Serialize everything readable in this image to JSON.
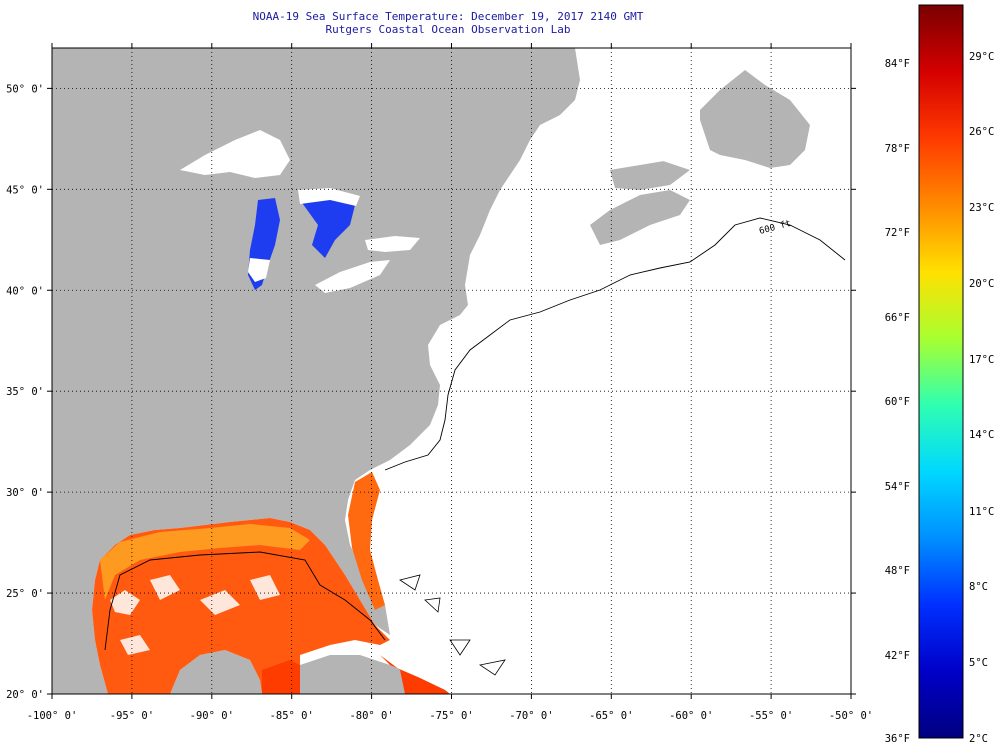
{
  "title": {
    "line1": "NOAA-19 Sea Surface Temperature:  December 19, 2017 2140 GMT",
    "line2": "Rutgers Coastal Ocean Observation Lab"
  },
  "map": {
    "lon_range": [
      -100,
      -50
    ],
    "lat_range": [
      20,
      52
    ],
    "lon_ticks": [
      "-100° 0'",
      "-95° 0'",
      "-90° 0'",
      "-85° 0'",
      "-80° 0'",
      "-75° 0'",
      "-70° 0'",
      "-65° 0'",
      "-60° 0'",
      "-55° 0'",
      "-50° 0'"
    ],
    "lat_ticks": [
      "20° 0'",
      "25° 0'",
      "30° 0'",
      "35° 0'",
      "40° 0'",
      "45° 0'",
      "50° 0'"
    ],
    "isobath_label": "600 ft",
    "grid": "dotted",
    "colors": {
      "land": "#b4b4b4",
      "ocean_no_data": "#ffffff",
      "lake_cold": "#1e3cf0",
      "gulf_warm": "#ff5a10",
      "coast_line": "#000000"
    }
  },
  "colorbar": {
    "fahrenheit": [
      "84°F",
      "78°F",
      "72°F",
      "66°F",
      "60°F",
      "54°F",
      "48°F",
      "42°F",
      "36°F"
    ],
    "celsius": [
      "29°C",
      "26°C",
      "23°C",
      "20°C",
      "17°C",
      "14°C",
      "11°C",
      "8°C",
      "5°C",
      "2°C"
    ],
    "stops": [
      "#7a0000",
      "#d40000",
      "#ff3a00",
      "#ff8a00",
      "#ffe000",
      "#a8ff30",
      "#30ffb0",
      "#00d8ff",
      "#0090ff",
      "#0030ff",
      "#0000c8",
      "#000080"
    ]
  }
}
